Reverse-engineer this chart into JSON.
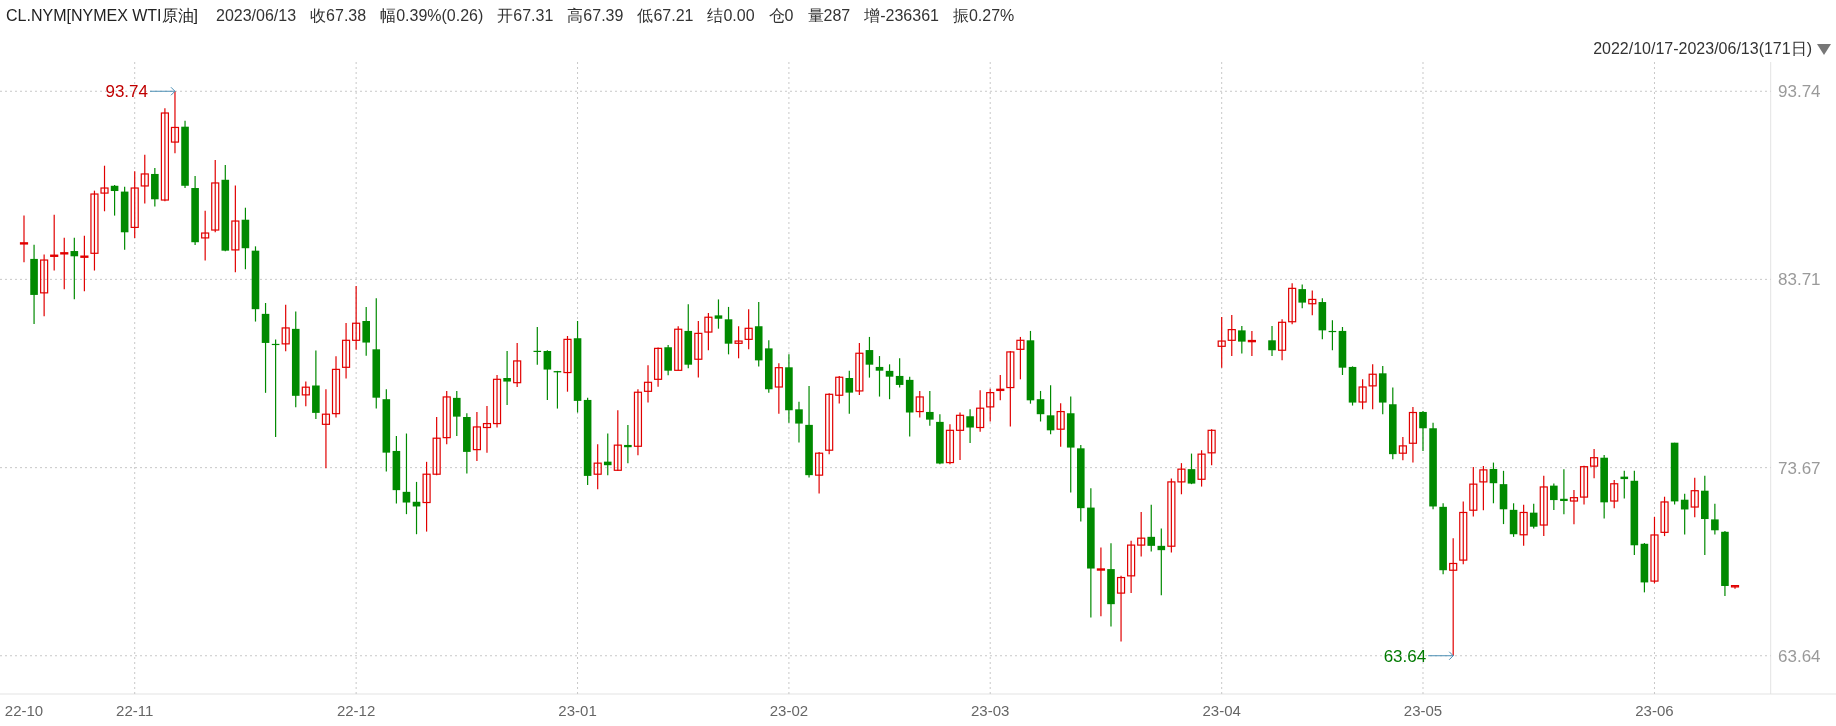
{
  "chart_data": {
    "type": "candlestick",
    "title": "CL.NYM[NYMEX WTI原油]",
    "subtitle": "2022/10/17-2023/06/13(171日)",
    "annotations": [
      "2023/06/13",
      "收67.38",
      "幅0.39%(0.26)",
      "开67.31",
      "高67.39",
      "低67.21",
      "结0.00",
      "仓0",
      "量287",
      "增-236361",
      "振0.27%",
      "93.74",
      "63.64"
    ],
    "categories": [
      "22-10",
      null,
      null,
      null,
      null,
      null,
      null,
      null,
      null,
      null,
      null,
      "22-11",
      null,
      null,
      null,
      null,
      null,
      null,
      null,
      null,
      null,
      null,
      null,
      null,
      null,
      null,
      null,
      null,
      null,
      null,
      null,
      null,
      null,
      "22-12",
      null,
      null,
      null,
      null,
      null,
      null,
      null,
      null,
      null,
      null,
      null,
      null,
      null,
      null,
      null,
      null,
      null,
      null,
      null,
      null,
      null,
      "23-01",
      null,
      null,
      null,
      null,
      null,
      null,
      null,
      null,
      null,
      null,
      null,
      null,
      null,
      null,
      null,
      null,
      null,
      null,
      null,
      null,
      "23-02",
      null,
      null,
      null,
      null,
      null,
      null,
      null,
      null,
      null,
      null,
      null,
      null,
      null,
      null,
      null,
      null,
      null,
      null,
      null,
      "23-03",
      null,
      null,
      null,
      null,
      null,
      null,
      null,
      null,
      null,
      null,
      null,
      null,
      null,
      null,
      null,
      null,
      null,
      null,
      null,
      null,
      null,
      null,
      "23-04",
      null,
      null,
      null,
      null,
      null,
      null,
      null,
      null,
      null,
      null,
      null,
      null,
      null,
      null,
      null,
      null,
      null,
      null,
      null,
      "23-05",
      null,
      null,
      null,
      null,
      null,
      null,
      null,
      null,
      null,
      null,
      null,
      null,
      null,
      null,
      null,
      null,
      null,
      null,
      null,
      null,
      null,
      null,
      "23-06",
      null,
      null,
      null,
      null,
      null,
      null,
      null,
      null
    ],
    "ohlc": [
      [
        85.64,
        87.11,
        84.62,
        85.66
      ],
      [
        84.8,
        85.56,
        81.33,
        82.88
      ],
      [
        82.99,
        85.03,
        81.74,
        84.74
      ],
      [
        84.98,
        87.16,
        84.18,
        85.0
      ],
      [
        85.11,
        85.93,
        83.18,
        85.13
      ],
      [
        85.22,
        85.93,
        82.65,
        84.94
      ],
      [
        84.93,
        86.04,
        83.07,
        84.95
      ],
      [
        85.1,
        88.44,
        84.18,
        88.26
      ],
      [
        88.31,
        89.77,
        87.34,
        88.58
      ],
      [
        88.7,
        88.74,
        87.11,
        88.42
      ],
      [
        88.39,
        88.65,
        85.29,
        86.22
      ],
      [
        86.48,
        89.47,
        85.92,
        88.58
      ],
      [
        88.69,
        90.36,
        87.76,
        89.33
      ],
      [
        89.33,
        89.65,
        87.59,
        87.98
      ],
      [
        87.94,
        92.84,
        87.87,
        92.58
      ],
      [
        91.03,
        93.74,
        90.43,
        91.81
      ],
      [
        91.85,
        92.17,
        88.58,
        88.7
      ],
      [
        88.58,
        89.22,
        85.54,
        85.69
      ],
      [
        85.92,
        87.37,
        84.71,
        86.18
      ],
      [
        86.34,
        90.07,
        86.22,
        88.85
      ],
      [
        89.02,
        89.81,
        85.21,
        85.24
      ],
      [
        85.28,
        88.71,
        84.09,
        86.82
      ],
      [
        86.89,
        87.53,
        84.25,
        85.37
      ],
      [
        85.24,
        85.47,
        81.46,
        82.12
      ],
      [
        81.87,
        82.45,
        77.66,
        80.32
      ],
      [
        80.27,
        80.5,
        75.3,
        80.25
      ],
      [
        80.27,
        82.35,
        79.88,
        81.12
      ],
      [
        81.07,
        81.99,
        76.89,
        77.5
      ],
      [
        77.55,
        78.26,
        76.95,
        77.96
      ],
      [
        78.05,
        79.91,
        76.27,
        76.59
      ],
      [
        75.98,
        77.85,
        73.64,
        76.52
      ],
      [
        76.55,
        79.61,
        76.34,
        78.91
      ],
      [
        79.02,
        81.38,
        78.42,
        80.46
      ],
      [
        80.46,
        83.35,
        79.96,
        81.37
      ],
      [
        81.49,
        82.24,
        79.64,
        80.34
      ],
      [
        79.98,
        82.7,
        76.82,
        77.4
      ],
      [
        77.32,
        77.85,
        73.46,
        74.47
      ],
      [
        74.56,
        75.36,
        71.76,
        72.47
      ],
      [
        72.38,
        75.49,
        71.19,
        71.81
      ],
      [
        71.85,
        72.91,
        70.12,
        71.6
      ],
      [
        71.81,
        73.98,
        70.26,
        73.32
      ],
      [
        73.32,
        76.37,
        73.27,
        75.24
      ],
      [
        75.27,
        77.76,
        74.92,
        77.44
      ],
      [
        77.39,
        77.76,
        75.36,
        76.39
      ],
      [
        76.37,
        76.57,
        73.36,
        74.51
      ],
      [
        74.63,
        76.64,
        74.03,
        75.84
      ],
      [
        75.81,
        76.96,
        74.47,
        76.02
      ],
      [
        76.02,
        78.61,
        75.81,
        78.38
      ],
      [
        78.45,
        79.89,
        77.01,
        78.26
      ],
      [
        78.2,
        80.32,
        77.97,
        79.36
      ],
      null,
      [
        79.9,
        81.17,
        79.15,
        79.89
      ],
      [
        79.89,
        79.93,
        77.28,
        78.9
      ],
      [
        78.82,
        78.83,
        76.82,
        78.75
      ],
      [
        78.74,
        80.69,
        77.72,
        80.51
      ],
      [
        80.57,
        81.49,
        76.61,
        77.23
      ],
      [
        77.28,
        77.4,
        72.75,
        73.23
      ],
      [
        73.32,
        74.92,
        72.52,
        73.91
      ],
      [
        73.99,
        75.49,
        73.27,
        73.8
      ],
      [
        73.53,
        76.73,
        73.5,
        74.87
      ],
      [
        74.88,
        75.95,
        73.91,
        74.76
      ],
      [
        74.81,
        77.85,
        74.33,
        77.69
      ],
      [
        77.74,
        79.13,
        77.14,
        78.22
      ],
      [
        78.38,
        80.07,
        77.99,
        80.03
      ],
      [
        80.09,
        80.21,
        78.59,
        78.84
      ],
      [
        78.86,
        81.21,
        78.86,
        81.05
      ],
      [
        80.96,
        82.38,
        78.97,
        79.16
      ],
      [
        79.45,
        81.49,
        78.47,
        80.83
      ],
      [
        80.9,
        81.92,
        79.93,
        81.69
      ],
      [
        81.79,
        82.64,
        81.08,
        81.61
      ],
      [
        81.58,
        82.24,
        79.71,
        80.28
      ],
      [
        80.3,
        81.21,
        79.5,
        80.42
      ],
      [
        80.51,
        82.11,
        79.98,
        81.1
      ],
      [
        81.21,
        82.5,
        79.06,
        79.39
      ],
      [
        80.03,
        80.46,
        77.67,
        77.85
      ],
      [
        77.97,
        79.23,
        76.55,
        79.0
      ],
      [
        79.02,
        79.71,
        76.07,
        76.73
      ],
      [
        76.78,
        77.19,
        75.01,
        76.02
      ],
      [
        75.95,
        78.03,
        73.14,
        73.27
      ],
      [
        73.27,
        74.51,
        72.29,
        74.44
      ],
      [
        74.6,
        77.64,
        74.38,
        77.58
      ],
      [
        77.53,
        78.56,
        77.09,
        78.49
      ],
      [
        78.45,
        78.83,
        76.55,
        77.67
      ],
      [
        77.76,
        80.32,
        77.55,
        79.77
      ],
      [
        79.94,
        80.64,
        78.47,
        79.16
      ],
      [
        79.04,
        79.62,
        77.46,
        78.84
      ],
      [
        78.83,
        79.18,
        77.32,
        78.52
      ],
      [
        78.56,
        79.5,
        77.94,
        78.08
      ],
      [
        78.35,
        78.51,
        75.33,
        76.61
      ],
      [
        76.66,
        77.76,
        76.34,
        77.44
      ],
      [
        76.64,
        77.76,
        75.9,
        76.23
      ],
      [
        76.11,
        76.52,
        73.85,
        73.89
      ],
      [
        73.94,
        75.98,
        73.85,
        75.66
      ],
      [
        75.66,
        76.61,
        74.08,
        76.46
      ],
      [
        76.41,
        76.78,
        74.99,
        75.81
      ],
      [
        75.81,
        77.8,
        75.59,
        76.84
      ],
      [
        76.91,
        77.88,
        76.13,
        77.67
      ],
      [
        77.8,
        78.61,
        77.26,
        77.85
      ],
      [
        77.94,
        79.89,
        75.86,
        79.84
      ],
      [
        79.98,
        80.64,
        78.38,
        80.46
      ],
      [
        80.46,
        80.96,
        77.08,
        77.26
      ],
      [
        77.32,
        77.76,
        76.13,
        76.52
      ],
      [
        76.46,
        78.06,
        75.45,
        75.66
      ],
      [
        75.72,
        77.1,
        74.79,
        76.66
      ],
      [
        76.57,
        77.46,
        72.34,
        74.74
      ],
      [
        74.7,
        74.88,
        70.8,
        71.51
      ],
      [
        71.54,
        72.57,
        65.68,
        68.29
      ],
      [
        68.25,
        69.41,
        65.74,
        68.27
      ],
      [
        68.26,
        69.64,
        65.2,
        66.39
      ],
      [
        66.98,
        67.9,
        64.4,
        67.81
      ],
      [
        67.9,
        69.77,
        66.98,
        69.54
      ],
      [
        69.54,
        71.31,
        68.93,
        69.91
      ],
      [
        69.98,
        71.69,
        69.2,
        69.5
      ],
      [
        69.5,
        70.42,
        66.87,
        69.27
      ],
      [
        69.48,
        73.09,
        69.15,
        72.91
      ],
      [
        72.91,
        73.91,
        72.25,
        73.59
      ],
      [
        73.59,
        74.42,
        72.79,
        72.82
      ],
      [
        73.05,
        74.6,
        72.66,
        74.39
      ],
      [
        74.46,
        75.72,
        73.8,
        75.66
      ],
      [
        80.14,
        81.7,
        79.0,
        80.42
      ],
      [
        80.46,
        81.81,
        79.62,
        81.03
      ],
      [
        80.99,
        81.22,
        79.75,
        80.39
      ],
      [
        80.43,
        80.96,
        79.62,
        80.45
      ],
      null,
      [
        80.46,
        81.22,
        79.62,
        79.93
      ],
      [
        79.93,
        81.58,
        79.39,
        81.42
      ],
      [
        81.45,
        83.5,
        81.31,
        83.23
      ],
      [
        83.19,
        83.44,
        82.17,
        82.47
      ],
      [
        82.41,
        83.12,
        81.79,
        82.64
      ],
      [
        82.5,
        82.7,
        80.51,
        80.99
      ],
      [
        80.96,
        81.53,
        79.93,
        80.93
      ],
      [
        80.96,
        81.17,
        78.61,
        79.0
      ],
      [
        79.04,
        79.07,
        76.98,
        77.14
      ],
      [
        77.17,
        78.38,
        76.78,
        77.97
      ],
      [
        78.03,
        79.18,
        76.78,
        78.65
      ],
      [
        78.7,
        79.09,
        76.52,
        77.14
      ],
      [
        77.05,
        77.94,
        74.12,
        74.39
      ],
      [
        74.44,
        75.31,
        74.07,
        74.83
      ],
      [
        74.97,
        76.91,
        73.94,
        76.61
      ],
      [
        76.64,
        76.69,
        74.56,
        75.77
      ],
      [
        75.77,
        76.07,
        71.45,
        71.6
      ],
      [
        71.58,
        71.77,
        67.99,
        68.2
      ],
      [
        68.2,
        69.91,
        63.64,
        68.56
      ],
      [
        68.74,
        71.86,
        68.52,
        71.28
      ],
      [
        71.4,
        73.71,
        71.06,
        72.79
      ],
      [
        72.91,
        73.76,
        71.4,
        73.55
      ],
      [
        73.6,
        73.94,
        71.77,
        72.84
      ],
      [
        72.79,
        73.5,
        70.66,
        71.45
      ],
      [
        71.42,
        71.77,
        69.98,
        70.12
      ],
      [
        70.09,
        71.69,
        69.5,
        71.28
      ],
      [
        71.27,
        71.75,
        70.43,
        70.52
      ],
      [
        70.61,
        73.24,
        70.02,
        72.64
      ],
      [
        72.71,
        72.83,
        71.41,
        71.94
      ],
      [
        72.01,
        73.58,
        71.18,
        71.89
      ],
      [
        71.89,
        72.48,
        70.65,
        72.07
      ],
      [
        72.1,
        73.77,
        71.71,
        73.72
      ],
      [
        73.75,
        74.66,
        73.1,
        74.2
      ],
      [
        74.2,
        74.34,
        70.96,
        71.82
      ],
      [
        71.89,
        73.01,
        71.5,
        72.81
      ],
      [
        73.19,
        73.51,
        72.03,
        73.06
      ],
      [
        72.97,
        73.51,
        69.01,
        69.53
      ],
      [
        69.61,
        69.65,
        67.02,
        67.55
      ],
      [
        67.62,
        71.05,
        67.5,
        70.08
      ],
      [
        70.22,
        72.12,
        70.02,
        71.84
      ],
      [
        75.0,
        75.0,
        71.71,
        71.87
      ],
      [
        71.96,
        72.28,
        70.11,
        71.44
      ],
      [
        71.57,
        73.13,
        71.02,
        72.44
      ],
      [
        72.44,
        73.24,
        69.01,
        70.93
      ],
      [
        70.91,
        71.75,
        70.11,
        70.33
      ],
      [
        70.25,
        70.29,
        66.82,
        67.36
      ],
      [
        67.31,
        67.39,
        67.21,
        67.38
      ]
    ],
    "ylim": [
      61.6,
      95.3
    ],
    "yticks": [
      93.74,
      83.71,
      73.67,
      63.64
    ],
    "grid": true
  }
}
